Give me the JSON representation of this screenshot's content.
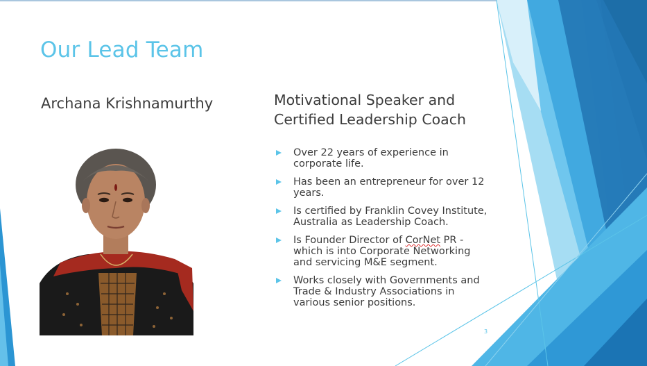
{
  "slide": {
    "title": "Our Lead Team",
    "person_name": "Archana Krishnamurthy",
    "role_line1": "Motivational Speaker and",
    "role_line2": "Certified Leadership Coach",
    "bullets": [
      "Over 22 years of experience in corporate life.",
      "Has been an entrepreneur for over 12 years.",
      "Is certified by Franklin Covey Institute, Australia as Leadership Coach.",
      "Is Founder Director of CorNet PR - which is into Corporate Networking and servicing M&E segment.",
      "Works closely with Governments and Trade & Industry Associations in various senior positions."
    ],
    "bullet4_prefix": "Is Founder Director of ",
    "bullet4_flagged_word": "CorNet",
    "bullet4_suffix": " PR - which is into Corporate Networking and servicing M&E segment.",
    "page_number": "3"
  },
  "colors": {
    "accent": "#5bc4e8",
    "text": "#3c3c3c",
    "deco_dark": "#1d6ea8",
    "deco_mid": "#3aa3dd",
    "deco_light": "#a6ddf3"
  },
  "icons": {
    "bullet": "triangle-bullet-icon",
    "photo": "person-photo"
  }
}
